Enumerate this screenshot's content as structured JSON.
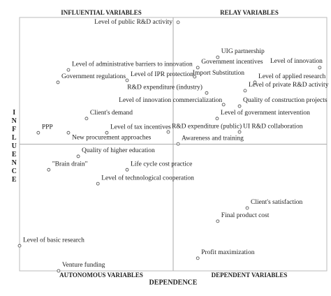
{
  "chart_data": {
    "type": "scatter",
    "quadrant_labels": {
      "top_left": "INFLUENTIAL VARIABLES",
      "top_right": "RELAY VARIABLES",
      "bottom_left": "AUTONOMOUS VARIABLES",
      "bottom_right": "DEPENDENT VARIABLES"
    },
    "xlabel": "DEPENDENCE",
    "ylabel": "INFLUENCE",
    "xlim": [
      0,
      100
    ],
    "ylim": [
      0,
      100
    ],
    "points": [
      {
        "label": "Level of public R&D activity",
        "x": 51.6,
        "y": 98.1
      },
      {
        "label": "UIG partnership",
        "x": 64.5,
        "y": 84.3
      },
      {
        "label": "Government incentives",
        "x": 58.0,
        "y": 80.2
      },
      {
        "label": "Level of innovation",
        "x": 97.7,
        "y": 80.2
      },
      {
        "label": "Level of administrative barriers to innovation",
        "x": 15.9,
        "y": 79.3
      },
      {
        "label": "Import Substitution",
        "x": 57.0,
        "y": 76.6
      },
      {
        "label": "Government regulations",
        "x": 12.5,
        "y": 74.4
      },
      {
        "label": "Level of IPR protection",
        "x": 35.0,
        "y": 75.2
      },
      {
        "label": "Level of applied research",
        "x": 76.6,
        "y": 74.4
      },
      {
        "label": "Level of private R&D activity",
        "x": 73.4,
        "y": 71.1
      },
      {
        "label": "R&D expenditure (industry)",
        "x": 60.9,
        "y": 70.2
      },
      {
        "label": "Level of innovation commercialization",
        "x": 66.4,
        "y": 65.6
      },
      {
        "label": "Quality of construction projects",
        "x": 71.6,
        "y": 65.0
      },
      {
        "label": "Client's demand",
        "x": 21.8,
        "y": 60.1
      },
      {
        "label": "Level of government intervention",
        "x": 64.3,
        "y": 60.1
      },
      {
        "label": "PPP",
        "x": 6.1,
        "y": 54.5
      },
      {
        "label": "Level of tax incentives",
        "x": 28.4,
        "y": 54.5
      },
      {
        "label": "R&D expenditure (public)",
        "x": 48.4,
        "y": 54.8
      },
      {
        "label": "UI R&D collaboration",
        "x": 71.6,
        "y": 54.8
      },
      {
        "label": "New procurement approaches",
        "x": 15.9,
        "y": 54.5
      },
      {
        "label": "Awareness and training",
        "x": 51.6,
        "y": 50.1
      },
      {
        "label": "Quality of higher education",
        "x": 19.1,
        "y": 45.2
      },
      {
        "label": "\"Brain drain\"",
        "x": 9.5,
        "y": 39.9
      },
      {
        "label": "Life cycle cost practice",
        "x": 35.0,
        "y": 39.9
      },
      {
        "label": "Level of technological cooperation",
        "x": 25.5,
        "y": 34.4
      },
      {
        "label": "Client's satisfaction",
        "x": 74.1,
        "y": 24.8
      },
      {
        "label": "Final product cost",
        "x": 64.5,
        "y": 19.6
      },
      {
        "label": "Level of basic research",
        "x": 0,
        "y": 9.9
      },
      {
        "label": "Profit maximization",
        "x": 58.0,
        "y": 5.0
      },
      {
        "label": "Venture funding",
        "x": 12.7,
        "y": 0
      }
    ]
  }
}
